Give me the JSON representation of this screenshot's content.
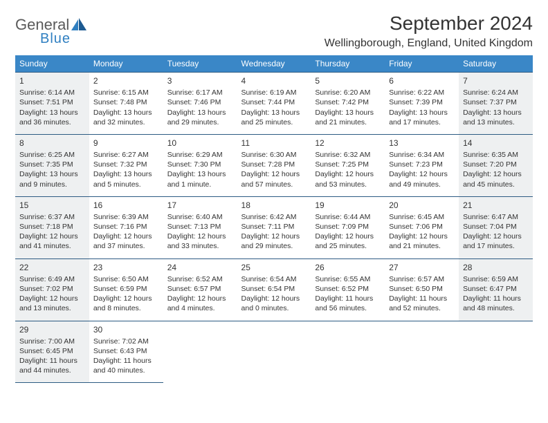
{
  "logo": {
    "general": "General",
    "blue": "Blue"
  },
  "title": "September 2024",
  "location": "Wellingborough, England, United Kingdom",
  "colors": {
    "header_bg": "#3a87c7",
    "header_text": "#ffffff",
    "cell_border": "#2b5a82",
    "shaded_bg": "#eef0f1",
    "body_bg": "#ffffff",
    "text": "#333333",
    "logo_accent": "#2f7fc1"
  },
  "weekdays": [
    "Sunday",
    "Monday",
    "Tuesday",
    "Wednesday",
    "Thursday",
    "Friday",
    "Saturday"
  ],
  "weeks": [
    [
      {
        "day": 1,
        "shaded": true,
        "sunrise": "6:14 AM",
        "sunset": "7:51 PM",
        "daylight": "13 hours and 36 minutes."
      },
      {
        "day": 2,
        "shaded": false,
        "sunrise": "6:15 AM",
        "sunset": "7:48 PM",
        "daylight": "13 hours and 32 minutes."
      },
      {
        "day": 3,
        "shaded": false,
        "sunrise": "6:17 AM",
        "sunset": "7:46 PM",
        "daylight": "13 hours and 29 minutes."
      },
      {
        "day": 4,
        "shaded": false,
        "sunrise": "6:19 AM",
        "sunset": "7:44 PM",
        "daylight": "13 hours and 25 minutes."
      },
      {
        "day": 5,
        "shaded": false,
        "sunrise": "6:20 AM",
        "sunset": "7:42 PM",
        "daylight": "13 hours and 21 minutes."
      },
      {
        "day": 6,
        "shaded": false,
        "sunrise": "6:22 AM",
        "sunset": "7:39 PM",
        "daylight": "13 hours and 17 minutes."
      },
      {
        "day": 7,
        "shaded": true,
        "sunrise": "6:24 AM",
        "sunset": "7:37 PM",
        "daylight": "13 hours and 13 minutes."
      }
    ],
    [
      {
        "day": 8,
        "shaded": true,
        "sunrise": "6:25 AM",
        "sunset": "7:35 PM",
        "daylight": "13 hours and 9 minutes."
      },
      {
        "day": 9,
        "shaded": false,
        "sunrise": "6:27 AM",
        "sunset": "7:32 PM",
        "daylight": "13 hours and 5 minutes."
      },
      {
        "day": 10,
        "shaded": false,
        "sunrise": "6:29 AM",
        "sunset": "7:30 PM",
        "daylight": "13 hours and 1 minute."
      },
      {
        "day": 11,
        "shaded": false,
        "sunrise": "6:30 AM",
        "sunset": "7:28 PM",
        "daylight": "12 hours and 57 minutes."
      },
      {
        "day": 12,
        "shaded": false,
        "sunrise": "6:32 AM",
        "sunset": "7:25 PM",
        "daylight": "12 hours and 53 minutes."
      },
      {
        "day": 13,
        "shaded": false,
        "sunrise": "6:34 AM",
        "sunset": "7:23 PM",
        "daylight": "12 hours and 49 minutes."
      },
      {
        "day": 14,
        "shaded": true,
        "sunrise": "6:35 AM",
        "sunset": "7:20 PM",
        "daylight": "12 hours and 45 minutes."
      }
    ],
    [
      {
        "day": 15,
        "shaded": true,
        "sunrise": "6:37 AM",
        "sunset": "7:18 PM",
        "daylight": "12 hours and 41 minutes."
      },
      {
        "day": 16,
        "shaded": false,
        "sunrise": "6:39 AM",
        "sunset": "7:16 PM",
        "daylight": "12 hours and 37 minutes."
      },
      {
        "day": 17,
        "shaded": false,
        "sunrise": "6:40 AM",
        "sunset": "7:13 PM",
        "daylight": "12 hours and 33 minutes."
      },
      {
        "day": 18,
        "shaded": false,
        "sunrise": "6:42 AM",
        "sunset": "7:11 PM",
        "daylight": "12 hours and 29 minutes."
      },
      {
        "day": 19,
        "shaded": false,
        "sunrise": "6:44 AM",
        "sunset": "7:09 PM",
        "daylight": "12 hours and 25 minutes."
      },
      {
        "day": 20,
        "shaded": false,
        "sunrise": "6:45 AM",
        "sunset": "7:06 PM",
        "daylight": "12 hours and 21 minutes."
      },
      {
        "day": 21,
        "shaded": true,
        "sunrise": "6:47 AM",
        "sunset": "7:04 PM",
        "daylight": "12 hours and 17 minutes."
      }
    ],
    [
      {
        "day": 22,
        "shaded": true,
        "sunrise": "6:49 AM",
        "sunset": "7:02 PM",
        "daylight": "12 hours and 13 minutes."
      },
      {
        "day": 23,
        "shaded": false,
        "sunrise": "6:50 AM",
        "sunset": "6:59 PM",
        "daylight": "12 hours and 8 minutes."
      },
      {
        "day": 24,
        "shaded": false,
        "sunrise": "6:52 AM",
        "sunset": "6:57 PM",
        "daylight": "12 hours and 4 minutes."
      },
      {
        "day": 25,
        "shaded": false,
        "sunrise": "6:54 AM",
        "sunset": "6:54 PM",
        "daylight": "12 hours and 0 minutes."
      },
      {
        "day": 26,
        "shaded": false,
        "sunrise": "6:55 AM",
        "sunset": "6:52 PM",
        "daylight": "11 hours and 56 minutes."
      },
      {
        "day": 27,
        "shaded": false,
        "sunrise": "6:57 AM",
        "sunset": "6:50 PM",
        "daylight": "11 hours and 52 minutes."
      },
      {
        "day": 28,
        "shaded": true,
        "sunrise": "6:59 AM",
        "sunset": "6:47 PM",
        "daylight": "11 hours and 48 minutes."
      }
    ],
    [
      {
        "day": 29,
        "shaded": true,
        "sunrise": "7:00 AM",
        "sunset": "6:45 PM",
        "daylight": "11 hours and 44 minutes."
      },
      {
        "day": 30,
        "shaded": false,
        "sunrise": "7:02 AM",
        "sunset": "6:43 PM",
        "daylight": "11 hours and 40 minutes."
      },
      null,
      null,
      null,
      null,
      null
    ]
  ],
  "labels": {
    "sunrise": "Sunrise:",
    "sunset": "Sunset:",
    "daylight": "Daylight:"
  }
}
